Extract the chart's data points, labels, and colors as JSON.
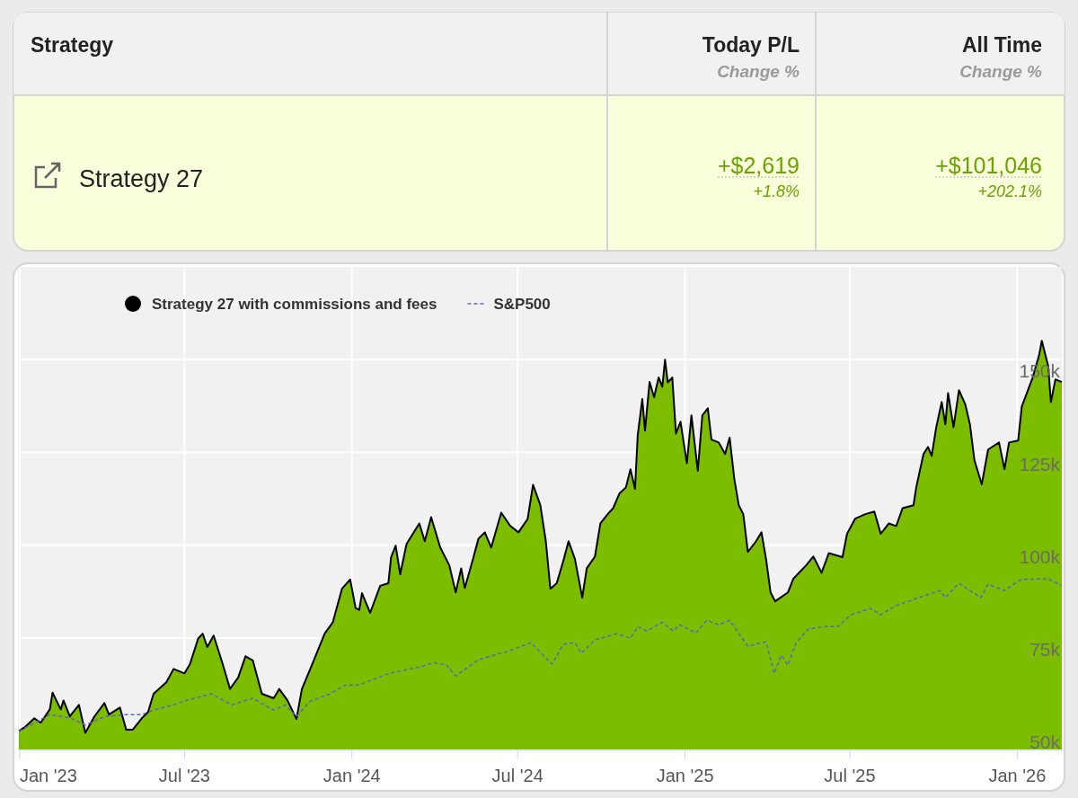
{
  "chart_data": [
    {
      "type": "other",
      "categories": [
        "Strategy",
        "Today P/L",
        "All Time"
      ],
      "annotations": [
        "Change %",
        "Change %",
        "Strategy 27",
        "+$2,619",
        "+1.8%",
        "+$101,046",
        "+202.1%"
      ]
    },
    {
      "type": "area",
      "xlim": [
        "2022-12-30",
        "2026-02-19"
      ],
      "ylim": [
        45000,
        175000
      ],
      "xticks": [
        {
          "value": "2023-01-01",
          "label": "Jan '23"
        },
        {
          "value": "2023-07-01",
          "label": "Jul '23"
        },
        {
          "value": "2024-01-01",
          "label": "Jan '24"
        },
        {
          "value": "2024-07-01",
          "label": "Jul '24"
        },
        {
          "value": "2025-01-01",
          "label": "Jan '25"
        },
        {
          "value": "2025-07-01",
          "label": "Jul '25"
        },
        {
          "value": "2026-01-01",
          "label": "Jan '26"
        }
      ],
      "yticks": [
        {
          "value": 50000,
          "label": "50k"
        },
        {
          "value": 75000,
          "label": "75k"
        },
        {
          "value": 100000,
          "label": "100k"
        },
        {
          "value": 125000,
          "label": "125k"
        },
        {
          "value": 150000,
          "label": "150k"
        }
      ],
      "grid": true,
      "legend": "top",
      "series": [
        {
          "name": "Strategy 27 with commissions and fees",
          "type": "area",
          "color": "#7cbd00",
          "x": [
            "2022-12-31",
            "2023-01-07",
            "2023-01-17",
            "2023-01-24",
            "2023-02-03",
            "2023-02-06",
            "2023-02-15",
            "2023-02-18",
            "2023-02-25",
            "2023-03-07",
            "2023-03-14",
            "2023-03-24",
            "2023-04-04",
            "2023-04-09",
            "2023-04-21",
            "2023-04-28",
            "2023-05-05",
            "2023-05-15",
            "2023-05-22",
            "2023-05-28",
            "2023-06-11",
            "2023-06-19",
            "2023-07-01",
            "2023-07-07",
            "2023-07-16",
            "2023-07-21",
            "2023-07-26",
            "2023-08-02",
            "2023-08-12",
            "2023-08-20",
            "2023-08-29",
            "2023-09-06",
            "2023-09-14",
            "2023-09-24",
            "2023-10-07",
            "2023-10-13",
            "2023-10-22",
            "2023-11-01",
            "2023-11-07",
            "2023-11-17",
            "2023-12-02",
            "2023-12-11",
            "2023-12-21",
            "2023-12-30",
            "2024-01-05",
            "2024-01-09",
            "2024-01-12",
            "2024-01-21",
            "2024-02-01",
            "2024-02-10",
            "2024-02-13",
            "2024-02-18",
            "2024-02-23",
            "2024-03-01",
            "2024-03-15",
            "2024-03-21",
            "2024-03-28",
            "2024-04-07",
            "2024-04-17",
            "2024-04-24",
            "2024-04-30",
            "2024-05-04",
            "2024-05-13",
            "2024-05-19",
            "2024-05-26",
            "2024-06-02",
            "2024-06-13",
            "2024-06-23",
            "2024-07-02",
            "2024-07-12",
            "2024-07-18",
            "2024-07-26",
            "2024-08-01",
            "2024-08-06",
            "2024-08-13",
            "2024-08-20",
            "2024-08-26",
            "2024-09-02",
            "2024-09-10",
            "2024-09-15",
            "2024-09-24",
            "2024-09-30",
            "2024-10-08",
            "2024-10-14",
            "2024-10-21",
            "2024-10-28",
            "2024-11-02",
            "2024-11-07",
            "2024-11-10",
            "2024-11-15",
            "2024-11-18",
            "2024-11-23",
            "2024-11-28",
            "2024-12-03",
            "2024-12-07",
            "2024-12-10",
            "2024-12-13",
            "2024-12-18",
            "2024-12-22",
            "2024-12-27",
            "2025-01-03",
            "2025-01-08",
            "2025-01-15",
            "2025-01-20",
            "2025-01-26",
            "2025-01-30",
            "2025-02-07",
            "2025-02-14",
            "2025-02-19",
            "2025-02-24",
            "2025-03-01",
            "2025-03-06",
            "2025-03-11",
            "2025-03-20",
            "2025-03-26",
            "2025-03-31",
            "2025-04-05",
            "2025-04-10",
            "2025-04-24",
            "2025-04-30",
            "2025-05-14",
            "2025-05-22",
            "2025-05-31",
            "2025-06-08",
            "2025-06-23",
            "2025-06-28",
            "2025-07-07",
            "2025-07-18",
            "2025-07-28",
            "2025-08-04",
            "2025-08-13",
            "2025-08-21",
            "2025-08-28",
            "2025-09-09",
            "2025-09-12",
            "2025-09-20",
            "2025-09-25",
            "2025-09-29",
            "2025-10-04",
            "2025-10-10",
            "2025-10-14",
            "2025-10-17",
            "2025-10-23",
            "2025-10-29",
            "2025-11-05",
            "2025-11-10",
            "2025-11-15",
            "2025-11-23",
            "2025-11-30",
            "2025-12-12",
            "2025-12-18",
            "2025-12-23",
            "2026-01-02",
            "2026-01-06",
            "2026-01-18",
            "2026-01-25",
            "2026-01-28",
            "2026-02-04",
            "2026-02-07",
            "2026-02-12",
            "2026-02-19"
          ],
          "values": [
            50000,
            51100,
            53400,
            52200,
            55800,
            60300,
            55800,
            58200,
            53900,
            57000,
            49500,
            53900,
            57500,
            54400,
            56300,
            50300,
            50300,
            53400,
            55100,
            60000,
            63100,
            66700,
            65500,
            68000,
            74900,
            76200,
            72600,
            75700,
            68000,
            61300,
            64400,
            70100,
            69000,
            60000,
            58800,
            61300,
            58300,
            53200,
            61300,
            67200,
            76200,
            79300,
            88300,
            90800,
            83100,
            82600,
            87100,
            81800,
            89100,
            89800,
            96800,
            99900,
            92200,
            100400,
            105900,
            101100,
            107600,
            99400,
            94600,
            87300,
            93800,
            88500,
            96300,
            101800,
            103500,
            99400,
            108800,
            105200,
            103500,
            107100,
            116300,
            110800,
            101100,
            88300,
            89800,
            95600,
            101100,
            96300,
            85900,
            93800,
            97000,
            105900,
            108400,
            110000,
            114000,
            115600,
            120500,
            115200,
            129700,
            139400,
            130900,
            144000,
            139900,
            145200,
            142700,
            150000,
            143900,
            145200,
            130100,
            133300,
            122100,
            135000,
            120100,
            135000,
            136900,
            128500,
            127700,
            124600,
            129000,
            118100,
            110800,
            108400,
            98200,
            101100,
            103500,
            96300,
            87300,
            84900,
            87300,
            91000,
            94600,
            97000,
            92600,
            97900,
            96800,
            103100,
            107200,
            108400,
            109100,
            103100,
            105900,
            105200,
            110000,
            110800,
            115600,
            124600,
            126500,
            124100,
            131800,
            138600,
            132600,
            141000,
            131800,
            141800,
            137900,
            132600,
            122900,
            116400,
            125800,
            127700,
            120500,
            127700,
            128200,
            137400,
            145200,
            151200,
            155100,
            148300,
            138600,
            144700,
            144000
          ]
        },
        {
          "name": "S&P500",
          "type": "line",
          "color": "#5c63c8",
          "line_style": "dashed",
          "x": [
            "2022-12-31",
            "2023-01-17",
            "2023-02-03",
            "2023-02-25",
            "2023-03-14",
            "2023-04-05",
            "2023-04-28",
            "2023-05-15",
            "2023-05-28",
            "2023-06-16",
            "2023-07-04",
            "2023-07-31",
            "2023-08-22",
            "2023-09-14",
            "2023-10-07",
            "2023-10-20",
            "2023-11-01",
            "2023-11-16",
            "2023-12-08",
            "2023-12-25",
            "2024-01-09",
            "2024-02-11",
            "2024-03-15",
            "2024-03-31",
            "2024-04-14",
            "2024-04-24",
            "2024-05-04",
            "2024-05-19",
            "2024-06-22",
            "2024-07-16",
            "2024-07-27",
            "2024-08-08",
            "2024-08-20",
            "2024-09-02",
            "2024-09-09",
            "2024-09-24",
            "2024-10-18",
            "2024-11-02",
            "2024-11-10",
            "2024-11-20",
            "2024-12-07",
            "2024-12-19",
            "2024-12-26",
            "2025-01-13",
            "2025-01-25",
            "2025-02-07",
            "2025-02-19",
            "2025-03-11",
            "2025-03-31",
            "2025-04-09",
            "2025-04-17",
            "2025-04-24",
            "2025-05-03",
            "2025-05-16",
            "2025-06-02",
            "2025-06-18",
            "2025-07-02",
            "2025-07-24",
            "2025-08-04",
            "2025-08-20",
            "2025-09-15",
            "2025-10-08",
            "2025-10-14",
            "2025-10-29",
            "2025-11-22",
            "2025-11-30",
            "2025-12-18",
            "2026-01-05",
            "2026-02-04",
            "2026-02-19"
          ],
          "values": [
            50000,
            52100,
            54400,
            53500,
            51600,
            53900,
            54400,
            54400,
            55600,
            56800,
            58300,
            60000,
            57000,
            58800,
            55600,
            57000,
            53900,
            58000,
            60000,
            62400,
            62400,
            65500,
            67200,
            68400,
            67700,
            64800,
            66500,
            69200,
            71600,
            73800,
            70900,
            68000,
            73300,
            73800,
            70900,
            74500,
            76200,
            75000,
            78100,
            76900,
            79300,
            76900,
            78600,
            76400,
            79800,
            78600,
            79800,
            72800,
            74000,
            65500,
            70400,
            67700,
            73800,
            77400,
            78100,
            78100,
            81300,
            83000,
            81300,
            83700,
            85900,
            87800,
            85900,
            89800,
            85900,
            89500,
            87800,
            90800,
            91000,
            89100
          ]
        }
      ]
    }
  ]
}
